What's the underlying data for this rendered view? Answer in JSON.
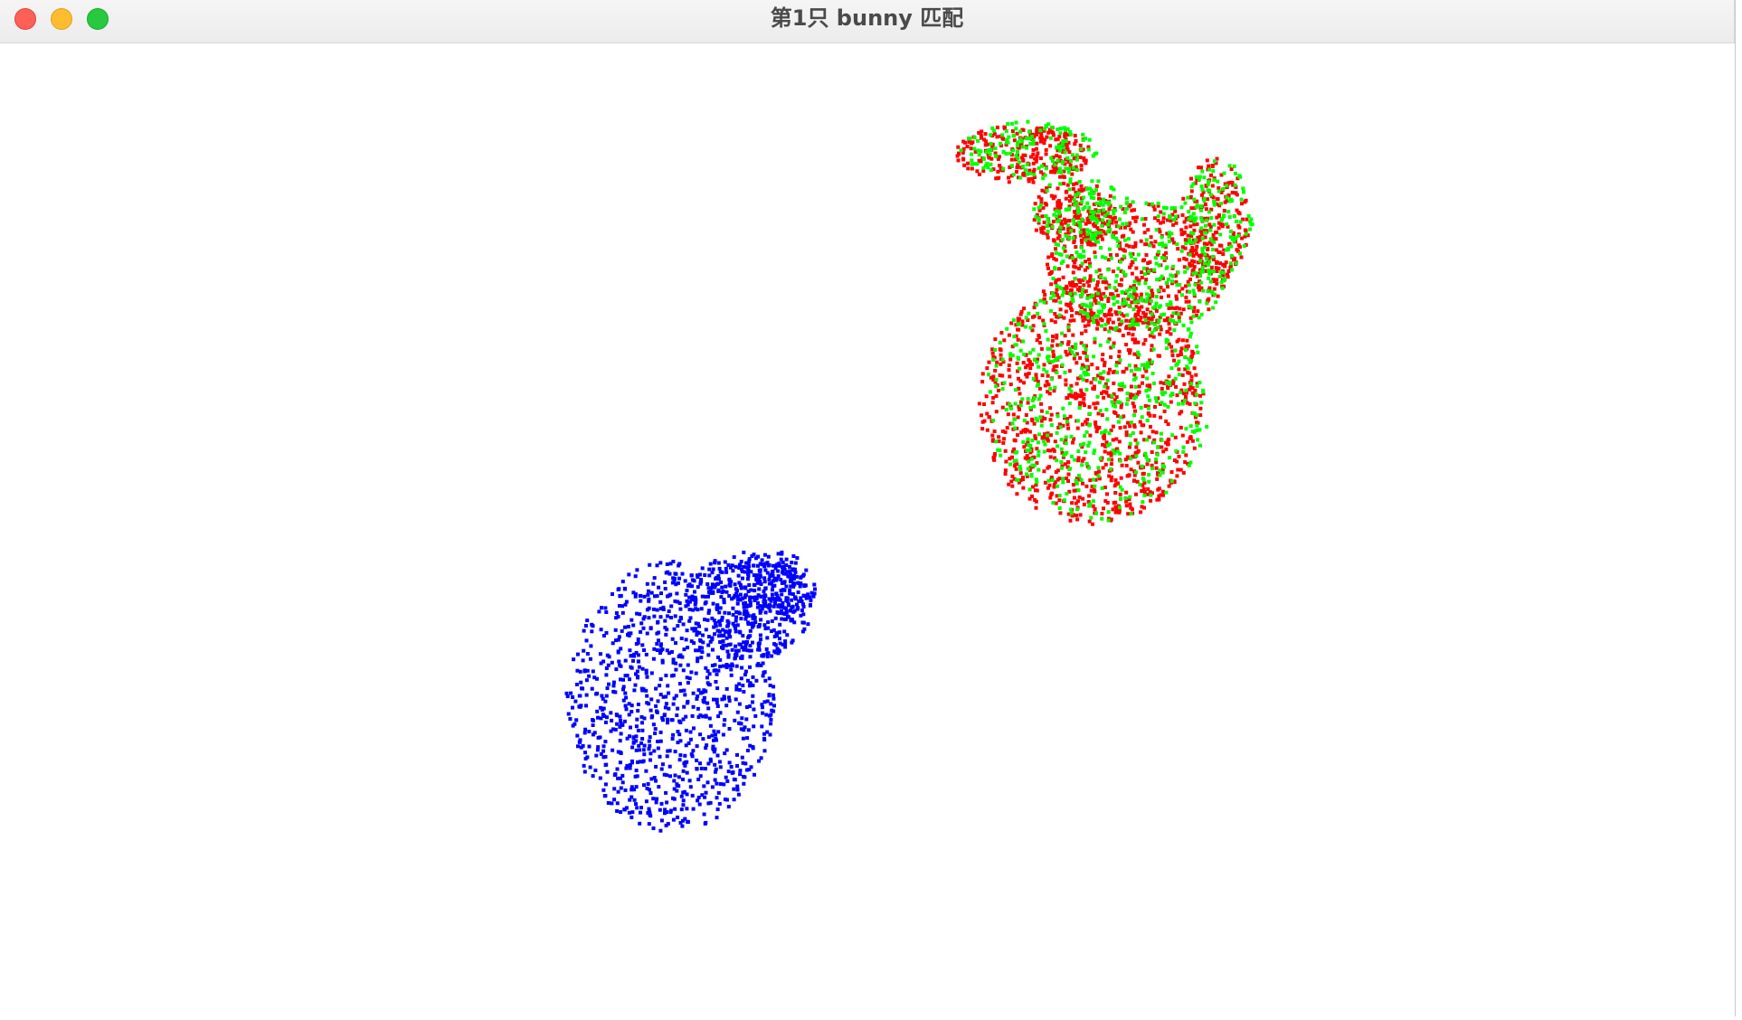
{
  "window": {
    "title": "第1只 bunny 匹配"
  },
  "traffic_lights": [
    {
      "name": "close",
      "color": "#fe5f57"
    },
    {
      "name": "minimize",
      "color": "#febc2e"
    },
    {
      "name": "zoom",
      "color": "#28c840"
    }
  ],
  "scene": {
    "background": "#ffffff",
    "point_clouds": [
      {
        "id": "source",
        "color": "#0000ff",
        "shape": "rotated-bunny",
        "approx_points": 1500
      },
      {
        "id": "target",
        "color": "#ff0000",
        "shape": "bunny",
        "approx_points": 2000
      },
      {
        "id": "aligned",
        "color": "#00ff00",
        "shape": "bunny",
        "approx_points": 1100
      }
    ]
  }
}
